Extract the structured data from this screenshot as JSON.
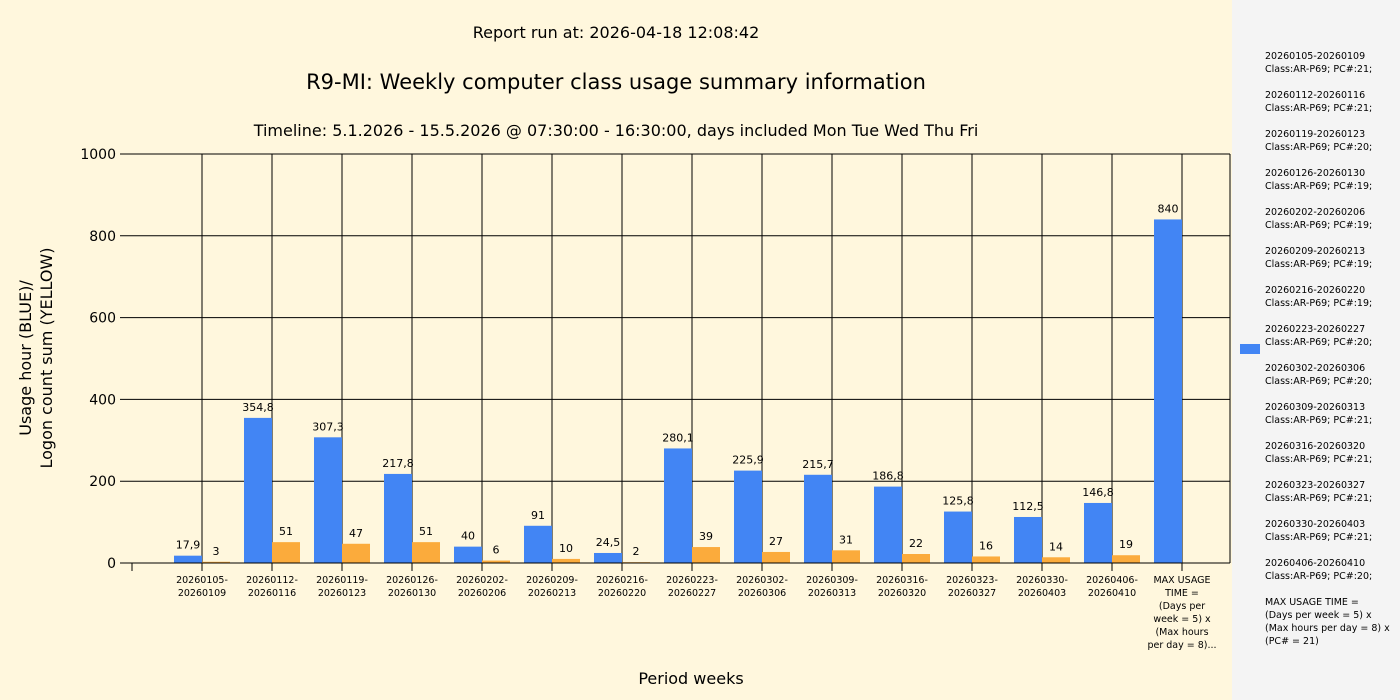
{
  "report_run": "Report run at: 2026-04-18 12:08:42",
  "chart_data": {
    "type": "bar",
    "title": "R9-MI: Weekly computer class usage summary information",
    "subtitle": "Timeline:  5.1.2026  - 15.5.2026  @  07:30:00 -  16:30:00, days included Mon Tue Wed Thu Fri",
    "xlabel": "Period weeks",
    "ylabel_line1": "Usage hour (BLUE)/",
    "ylabel_line2": "Logon count sum (YELLOW)",
    "ylim": [
      0,
      1000
    ],
    "yticks": [
      0,
      200,
      400,
      600,
      800,
      1000
    ],
    "grid": true,
    "categories": [
      [
        "20260105-",
        "20260109"
      ],
      [
        "20260112-",
        "20260116"
      ],
      [
        "20260119-",
        "20260123"
      ],
      [
        "20260126-",
        "20260130"
      ],
      [
        "20260202-",
        "20260206"
      ],
      [
        "20260209-",
        "20260213"
      ],
      [
        "20260216-",
        "20260220"
      ],
      [
        "20260223-",
        "20260227"
      ],
      [
        "20260302-",
        "20260306"
      ],
      [
        "20260309-",
        "20260313"
      ],
      [
        "20260316-",
        "20260320"
      ],
      [
        "20260323-",
        "20260327"
      ],
      [
        "20260330-",
        "20260403"
      ],
      [
        "20260406-",
        "20260410"
      ],
      [
        "MAX USAGE",
        "TIME =",
        "(Days per",
        "week = 5) x",
        "(Max hours",
        "per day = 8)..."
      ]
    ],
    "series": [
      {
        "name": "Usage hour",
        "color": "#4285f4",
        "values": [
          17.9,
          354.8,
          307.3,
          217.8,
          40,
          91,
          24.5,
          280.1,
          225.9,
          215.7,
          186.8,
          125.8,
          112.5,
          146.8,
          840
        ],
        "labels": [
          "17,9",
          "354,8",
          "307,3",
          "217,8",
          "40",
          "91",
          "24,5",
          "280,1",
          "225,9",
          "215,7",
          "186,8",
          "125,8",
          "112,5",
          "146,8",
          "840"
        ]
      },
      {
        "name": "Logon count sum",
        "color": "#fbab3c",
        "values": [
          3,
          51,
          47,
          51,
          6,
          10,
          2,
          39,
          27,
          31,
          22,
          16,
          14,
          19,
          null
        ],
        "labels": [
          "3",
          "51",
          "47",
          "51",
          "6",
          "10",
          "2",
          "39",
          "27",
          "31",
          "22",
          "16",
          "14",
          "19",
          ""
        ]
      }
    ]
  },
  "legend": [
    "20260105-20260109\nClass:AR-P69; PC#:21;",
    "20260112-20260116\nClass:AR-P69; PC#:21;",
    "20260119-20260123\nClass:AR-P69; PC#:20;",
    "20260126-20260130\nClass:AR-P69; PC#:19;",
    "20260202-20260206\nClass:AR-P69; PC#:19;",
    "20260209-20260213\nClass:AR-P69; PC#:19;",
    "20260216-20260220\nClass:AR-P69; PC#:19;",
    "20260223-20260227\nClass:AR-P69; PC#:20;",
    "20260302-20260306\nClass:AR-P69; PC#:20;",
    "20260309-20260313\nClass:AR-P69; PC#:21;",
    "20260316-20260320\nClass:AR-P69; PC#:21;",
    "20260323-20260327\nClass:AR-P69; PC#:21;",
    "20260330-20260403\nClass:AR-P69; PC#:21;",
    "20260406-20260410\nClass:AR-P69; PC#:20;",
    "MAX USAGE TIME =\n (Days per week = 5) x (Max hours per day = 8) x (PC# = 21)"
  ]
}
